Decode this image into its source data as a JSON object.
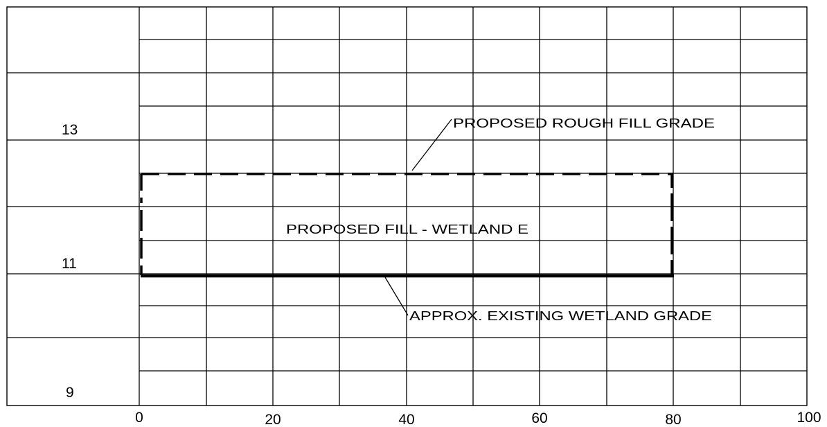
{
  "colors": {
    "line": "#000000",
    "background": "#ffffff"
  },
  "x_axis": {
    "ticks": [
      "0",
      "20",
      "40",
      "60",
      "80",
      "100"
    ]
  },
  "y_axis": {
    "ticks": [
      "13",
      "11",
      "9"
    ]
  },
  "annotations": {
    "fill_grade": "PROPOSED ROUGH FILL GRADE",
    "fill_area": "PROPOSED FILL - WETLAND E",
    "existing_grade": "APPROX. EXISTING WETLAND GRADE"
  }
}
